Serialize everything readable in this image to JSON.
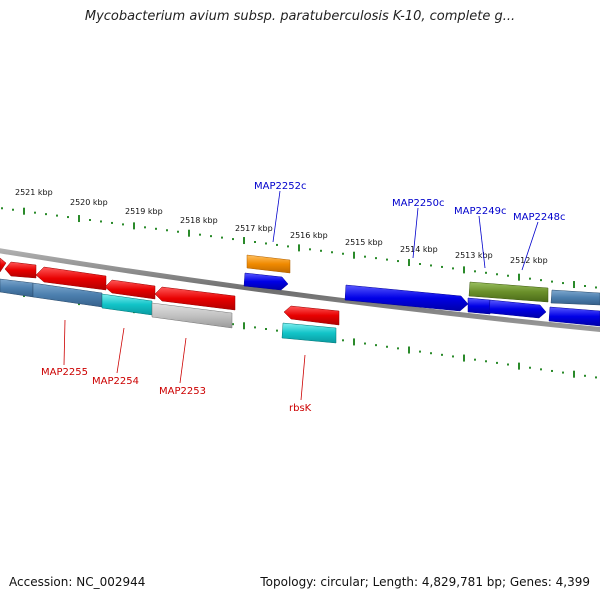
{
  "title": "Mycobacterium avium subsp. paratuberculosis K-10, complete g...",
  "footer": {
    "accession": "Accession: NC_002944",
    "stats": "Topology: circular; Length: 4,829,781 bp; Genes: 4,399"
  },
  "colors": {
    "backbone": "#7a7a7a",
    "ticks": "#2a8a2a",
    "label_reverse": "#cc0000",
    "label_forward": "#0000cc"
  },
  "ruler": {
    "labels": [
      "2521 kbp",
      "2520 kbp",
      "2519 kbp",
      "2518 kbp",
      "2517 kbp",
      "2516 kbp",
      "2515 kbp",
      "2514 kbp",
      "2513 kbp",
      "2512 kbp"
    ]
  },
  "gene_labels": [
    {
      "text": "MAP2252c",
      "strand": "forward"
    },
    {
      "text": "MAP2250c",
      "strand": "forward"
    },
    {
      "text": "MAP2249c",
      "strand": "forward"
    },
    {
      "text": "MAP2248c",
      "strand": "forward"
    },
    {
      "text": "MAP2255",
      "strand": "reverse"
    },
    {
      "text": "MAP2254",
      "strand": "reverse"
    },
    {
      "text": "MAP2253",
      "strand": "reverse"
    },
    {
      "text": "rbsK",
      "strand": "reverse"
    }
  ]
}
